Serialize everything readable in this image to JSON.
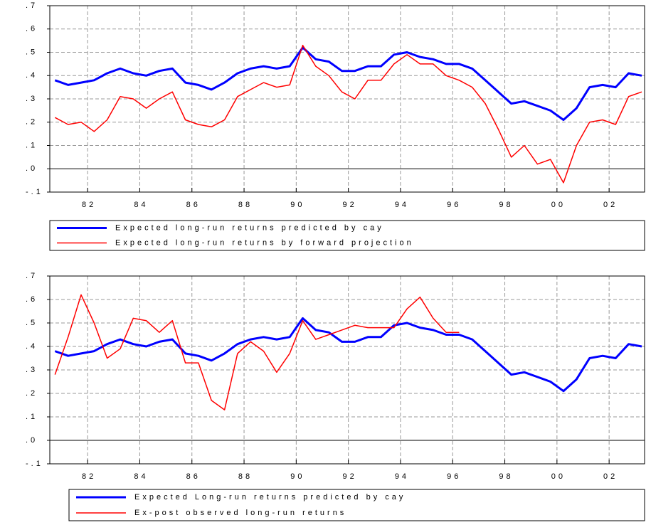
{
  "chart_data": [
    {
      "type": "line",
      "x": [
        1980.75,
        1981.25,
        1981.75,
        1982.25,
        1982.75,
        1983.25,
        1983.75,
        1984.25,
        1984.75,
        1985.25,
        1985.75,
        1986.25,
        1986.75,
        1987.25,
        1987.75,
        1988.25,
        1988.75,
        1989.25,
        1989.75,
        1990.25,
        1990.75,
        1991.25,
        1991.75,
        1992.25,
        1992.75,
        1993.25,
        1993.75,
        1994.25,
        1994.75,
        1995.25,
        1995.75,
        1996.25,
        1996.75,
        1997.25,
        1997.75,
        1998.25,
        1998.75,
        1999.25,
        1999.75,
        2000.25,
        2000.75,
        2001.25,
        2001.75,
        2002.25,
        2002.75,
        2003.25
      ],
      "series": [
        {
          "name": "Expected long-run returns predicted by cay",
          "color": "#0000ff",
          "width": 3,
          "values": [
            0.38,
            0.36,
            0.37,
            0.38,
            0.41,
            0.43,
            0.41,
            0.4,
            0.42,
            0.43,
            0.37,
            0.36,
            0.34,
            0.37,
            0.41,
            0.43,
            0.44,
            0.43,
            0.44,
            0.52,
            0.47,
            0.46,
            0.42,
            0.42,
            0.44,
            0.44,
            0.49,
            0.5,
            0.48,
            0.47,
            0.45,
            0.45,
            0.43,
            0.38,
            0.33,
            0.28,
            0.29,
            0.27,
            0.25,
            0.21,
            0.26,
            0.35,
            0.36,
            0.35,
            0.41,
            0.4
          ]
        },
        {
          "name": "Expected long-run returns by forward projection",
          "color": "#ff0000",
          "width": 1.5,
          "values": [
            0.22,
            0.19,
            0.2,
            0.16,
            0.21,
            0.31,
            0.3,
            0.26,
            0.3,
            0.33,
            0.21,
            0.19,
            0.18,
            0.21,
            0.31,
            0.34,
            0.37,
            0.35,
            0.36,
            0.53,
            0.44,
            0.4,
            0.33,
            0.3,
            0.38,
            0.38,
            0.45,
            0.49,
            0.45,
            0.45,
            0.4,
            0.38,
            0.35,
            0.28,
            0.17,
            0.05,
            0.1,
            0.02,
            0.04,
            -0.06,
            0.1,
            0.2,
            0.21,
            0.19,
            0.31,
            0.33
          ]
        }
      ],
      "xlim": [
        1980.55,
        2003.36
      ],
      "xticks": [
        {
          "value": 1982,
          "label": "82"
        },
        {
          "value": 1984,
          "label": "84"
        },
        {
          "value": 1986,
          "label": "86"
        },
        {
          "value": 1988,
          "label": "88"
        },
        {
          "value": 1990,
          "label": "90"
        },
        {
          "value": 1992,
          "label": "92"
        },
        {
          "value": 1994,
          "label": "94"
        },
        {
          "value": 1996,
          "label": "96"
        },
        {
          "value": 1998,
          "label": "98"
        },
        {
          "value": 2000,
          "label": "00"
        },
        {
          "value": 2002,
          "label": "02"
        }
      ],
      "ylim": [
        -0.1,
        0.7
      ],
      "yticks": [
        {
          "value": -0.1,
          "label": "-.1"
        },
        {
          "value": 0,
          "label": ".0"
        },
        {
          "value": 0.1,
          "label": ".1"
        },
        {
          "value": 0.2,
          "label": ".2"
        },
        {
          "value": 0.3,
          "label": ".3"
        },
        {
          "value": 0.4,
          "label": ".4"
        },
        {
          "value": 0.5,
          "label": ".5"
        },
        {
          "value": 0.6,
          "label": ".6"
        },
        {
          "value": 0.7,
          "label": ".7"
        }
      ],
      "grid": true,
      "legend": "bottom"
    },
    {
      "type": "line",
      "x": [
        1980.75,
        1981.25,
        1981.75,
        1982.25,
        1982.75,
        1983.25,
        1983.75,
        1984.25,
        1984.75,
        1985.25,
        1985.75,
        1986.25,
        1986.75,
        1987.25,
        1987.75,
        1988.25,
        1988.75,
        1989.25,
        1989.75,
        1990.25,
        1990.75,
        1991.25,
        1991.75,
        1992.25,
        1992.75,
        1993.25,
        1993.75,
        1994.25,
        1994.75,
        1995.25,
        1995.75,
        1996.25,
        1996.75,
        1997.25,
        1997.75,
        1998.25,
        1998.75,
        1999.25,
        1999.75,
        2000.25,
        2000.75,
        2001.25,
        2001.75,
        2002.25,
        2002.75,
        2003.25
      ],
      "series": [
        {
          "name": "Expected Long-run returns predicted by cay",
          "color": "#0000ff",
          "width": 3,
          "values": [
            0.38,
            0.36,
            0.37,
            0.38,
            0.41,
            0.43,
            0.41,
            0.4,
            0.42,
            0.43,
            0.37,
            0.36,
            0.34,
            0.37,
            0.41,
            0.43,
            0.44,
            0.43,
            0.44,
            0.52,
            0.47,
            0.46,
            0.42,
            0.42,
            0.44,
            0.44,
            0.49,
            0.5,
            0.48,
            0.47,
            0.45,
            0.45,
            0.43,
            0.38,
            0.33,
            0.28,
            0.29,
            0.27,
            0.25,
            0.21,
            0.26,
            0.35,
            0.36,
            0.35,
            0.41,
            0.4
          ]
        },
        {
          "name": "Ex-post observed long-run returns",
          "color": "#ff0000",
          "width": 1.5,
          "values": [
            0.28,
            0.44,
            0.62,
            0.5,
            0.35,
            0.39,
            0.52,
            0.51,
            0.46,
            0.51,
            0.33,
            0.33,
            0.17,
            0.13,
            0.37,
            0.42,
            0.38,
            0.29,
            0.37,
            0.51,
            0.43,
            0.45,
            0.47,
            0.49,
            0.48,
            0.48,
            0.48,
            0.56,
            0.61,
            0.52,
            0.46,
            0.46,
            null,
            null,
            null,
            null,
            null,
            null,
            null,
            null,
            null,
            null,
            null,
            null,
            null,
            null
          ]
        }
      ],
      "xlim": [
        1980.55,
        2003.36
      ],
      "xticks": [
        {
          "value": 1982,
          "label": "82"
        },
        {
          "value": 1984,
          "label": "84"
        },
        {
          "value": 1986,
          "label": "86"
        },
        {
          "value": 1988,
          "label": "88"
        },
        {
          "value": 1990,
          "label": "90"
        },
        {
          "value": 1992,
          "label": "92"
        },
        {
          "value": 1994,
          "label": "94"
        },
        {
          "value": 1996,
          "label": "96"
        },
        {
          "value": 1998,
          "label": "98"
        },
        {
          "value": 2000,
          "label": "00"
        },
        {
          "value": 2002,
          "label": "02"
        }
      ],
      "ylim": [
        -0.1,
        0.7
      ],
      "yticks": [
        {
          "value": -0.1,
          "label": "-.1"
        },
        {
          "value": 0,
          "label": ".0"
        },
        {
          "value": 0.1,
          "label": ".1"
        },
        {
          "value": 0.2,
          "label": ".2"
        },
        {
          "value": 0.3,
          "label": ".3"
        },
        {
          "value": 0.4,
          "label": ".4"
        },
        {
          "value": 0.5,
          "label": ".5"
        },
        {
          "value": 0.6,
          "label": ".6"
        },
        {
          "value": 0.7,
          "label": ".7"
        }
      ],
      "grid": true,
      "legend": "bottom"
    }
  ]
}
